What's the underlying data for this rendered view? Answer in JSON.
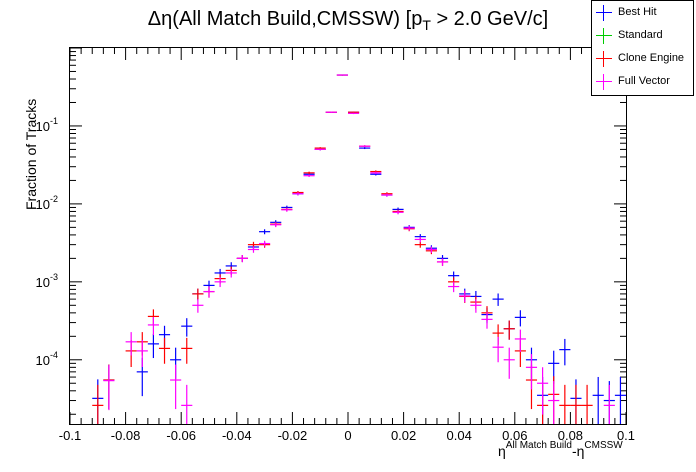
{
  "chart_data": {
    "type": "scatter",
    "title_main": "Δη(All Match Build,CMSSW) [p",
    "title_sub": "T",
    "title_rest": " > 2.0 GeV/c]",
    "ylabel": "Fraction of Tracks",
    "xlabel_base1": "η",
    "xlabel_sup1": "All Match Build",
    "xlabel_mid": "-η",
    "xlabel_sup2": "CMSSW",
    "xlim": [
      -0.1,
      0.1
    ],
    "ylim": [
      1.5e-05,
      1.0
    ],
    "yscale": "log",
    "bin_width": 0.004,
    "x_tick_labels": [
      "-0.1",
      "-0.08",
      "-0.06",
      "-0.04",
      "-0.02",
      "0",
      "0.02",
      "0.04",
      "0.06",
      "0.08",
      "0.1"
    ],
    "y_tick_labels": [
      {
        "base": "10",
        "exp": "-4"
      },
      {
        "base": "10",
        "exp": "-3"
      },
      {
        "base": "10",
        "exp": "-2"
      },
      {
        "base": "10",
        "exp": "-1"
      }
    ],
    "legend_position": "top-right",
    "series": [
      {
        "name": "Best Hit",
        "color": "#0000ff",
        "x": [
          -0.09,
          -0.086,
          -0.074,
          -0.07,
          -0.066,
          -0.062,
          -0.058,
          -0.054,
          -0.05,
          -0.046,
          -0.042,
          -0.038,
          -0.034,
          -0.03,
          -0.026,
          -0.022,
          -0.018,
          -0.014,
          -0.01,
          -0.006,
          -0.002,
          0.002,
          0.006,
          0.01,
          0.014,
          0.018,
          0.022,
          0.026,
          0.03,
          0.034,
          0.038,
          0.042,
          0.046,
          0.05,
          0.054,
          0.058,
          0.062,
          0.066,
          0.07,
          0.074,
          0.078,
          0.082,
          0.09,
          0.094,
          0.098
        ],
        "y": [
          3.2e-05,
          5.5e-05,
          7e-05,
          0.00016,
          0.00021,
          0.0001,
          0.00027,
          0.0007,
          0.0009,
          0.0013,
          0.0016,
          0.002,
          0.0028,
          0.0044,
          0.0058,
          0.009,
          0.0135,
          0.024,
          0.05,
          0.15,
          0.45,
          0.15,
          0.052,
          0.024,
          0.013,
          0.0085,
          0.005,
          0.0038,
          0.0027,
          0.002,
          0.0012,
          0.0007,
          0.00065,
          0.00038,
          0.0006,
          0.00025,
          0.00035,
          0.0001,
          3.5e-05,
          9e-05,
          0.000135,
          3.2e-05,
          3.5e-05,
          3e-05,
          3.5e-05
        ]
      },
      {
        "name": "Standard",
        "color": "#00cc00",
        "x": [],
        "y": []
      },
      {
        "name": "Clone Engine",
        "color": "#ff0000",
        "x": [
          -0.09,
          -0.086,
          -0.078,
          -0.074,
          -0.07,
          -0.066,
          -0.058,
          -0.054,
          -0.05,
          -0.046,
          -0.042,
          -0.038,
          -0.034,
          -0.03,
          -0.026,
          -0.022,
          -0.018,
          -0.014,
          -0.01,
          -0.006,
          -0.002,
          0.002,
          0.006,
          0.01,
          0.014,
          0.018,
          0.022,
          0.026,
          0.03,
          0.034,
          0.038,
          0.042,
          0.046,
          0.05,
          0.054,
          0.058,
          0.062,
          0.066,
          0.07,
          0.074,
          0.078,
          0.082,
          0.086
        ],
        "y": [
          2.6e-05,
          5.5e-05,
          0.00013,
          0.00017,
          0.00036,
          0.00014,
          0.00014,
          0.0007,
          0.00075,
          0.0011,
          0.0014,
          0.002,
          0.003,
          0.003,
          0.0055,
          0.0085,
          0.014,
          0.025,
          0.052,
          0.15,
          0.45,
          0.15,
          0.055,
          0.026,
          0.0135,
          0.008,
          0.0048,
          0.003,
          0.0025,
          0.0018,
          0.001,
          0.00065,
          0.00055,
          0.0004,
          0.00022,
          0.00025,
          0.00013,
          5.5e-05,
          2.6e-05,
          3.6e-05,
          2.6e-05,
          2.6e-05,
          2.6e-05
        ]
      },
      {
        "name": "Full Vector",
        "color": "#ff00ff",
        "x": [
          -0.086,
          -0.078,
          -0.074,
          -0.07,
          -0.062,
          -0.058,
          -0.054,
          -0.05,
          -0.046,
          -0.042,
          -0.038,
          -0.034,
          -0.03,
          -0.026,
          -0.022,
          -0.018,
          -0.014,
          -0.01,
          -0.006,
          -0.002,
          0.002,
          0.006,
          0.01,
          0.014,
          0.018,
          0.022,
          0.026,
          0.03,
          0.034,
          0.038,
          0.042,
          0.046,
          0.05,
          0.054,
          0.058,
          0.062,
          0.066,
          0.07,
          0.074,
          0.094
        ],
        "y": [
          5.4e-05,
          0.00017,
          0.00013,
          0.00028,
          5.5e-05,
          2.6e-05,
          0.0005,
          0.00075,
          0.001,
          0.0013,
          0.002,
          0.0026,
          0.0031,
          0.0054,
          0.0084,
          0.0135,
          0.023,
          0.05,
          0.15,
          0.45,
          0.145,
          0.055,
          0.025,
          0.013,
          0.0078,
          0.0049,
          0.0035,
          0.0026,
          0.0018,
          0.00087,
          0.00066,
          0.0005,
          0.00033,
          0.000145,
          0.0001,
          0.000185,
          8e-05,
          5e-05,
          3e-05,
          2.6e-05
        ]
      }
    ]
  }
}
